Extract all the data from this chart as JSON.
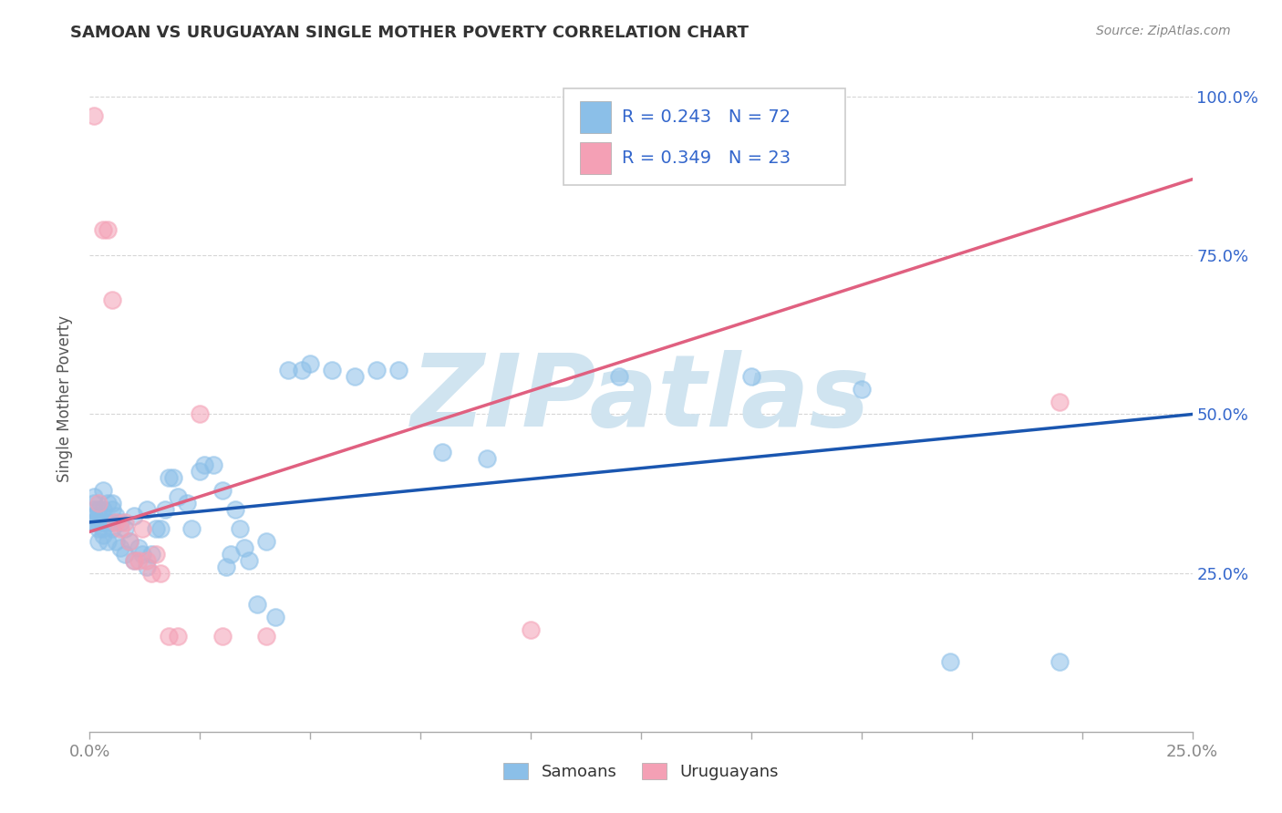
{
  "title": "SAMOAN VS URUGUAYAN SINGLE MOTHER POVERTY CORRELATION CHART",
  "source": "Source: ZipAtlas.com",
  "ylabel": "Single Mother Poverty",
  "xlim": [
    0.0,
    0.25
  ],
  "ylim": [
    0.0,
    1.05
  ],
  "samoans_R": 0.243,
  "samoans_N": 72,
  "uruguayans_R": 0.349,
  "uruguayans_N": 23,
  "samoan_color": "#8bbfe8",
  "uruguayan_color": "#f4a0b5",
  "samoan_line_color": "#1a56b0",
  "uruguayan_line_color": "#e06080",
  "background_color": "#ffffff",
  "grid_color": "#cccccc",
  "watermark_text": "ZIPatlas",
  "watermark_color": "#d0e4f0",
  "legend_text_color": "#3366cc",
  "title_color": "#333333",
  "ylabel_color": "#555555",
  "xtick_color": "#888888",
  "ytick_color": "#3366cc",
  "samoans_x": [
    0.001,
    0.001,
    0.001,
    0.001,
    0.001,
    0.001,
    0.002,
    0.002,
    0.002,
    0.002,
    0.002,
    0.003,
    0.003,
    0.003,
    0.003,
    0.003,
    0.004,
    0.004,
    0.004,
    0.005,
    0.005,
    0.005,
    0.005,
    0.006,
    0.006,
    0.007,
    0.007,
    0.008,
    0.008,
    0.009,
    0.01,
    0.01,
    0.011,
    0.012,
    0.013,
    0.013,
    0.014,
    0.015,
    0.016,
    0.017,
    0.018,
    0.019,
    0.02,
    0.022,
    0.023,
    0.025,
    0.026,
    0.028,
    0.03,
    0.031,
    0.032,
    0.033,
    0.034,
    0.035,
    0.036,
    0.038,
    0.04,
    0.042,
    0.045,
    0.048,
    0.05,
    0.055,
    0.06,
    0.065,
    0.07,
    0.08,
    0.09,
    0.12,
    0.15,
    0.175,
    0.195,
    0.22
  ],
  "samoans_y": [
    0.33,
    0.34,
    0.35,
    0.33,
    0.36,
    0.37,
    0.32,
    0.34,
    0.35,
    0.3,
    0.33,
    0.31,
    0.33,
    0.35,
    0.38,
    0.32,
    0.3,
    0.33,
    0.36,
    0.32,
    0.35,
    0.33,
    0.36,
    0.3,
    0.34,
    0.29,
    0.33,
    0.28,
    0.32,
    0.3,
    0.27,
    0.34,
    0.29,
    0.28,
    0.26,
    0.35,
    0.28,
    0.32,
    0.32,
    0.35,
    0.4,
    0.4,
    0.37,
    0.36,
    0.32,
    0.41,
    0.42,
    0.42,
    0.38,
    0.26,
    0.28,
    0.35,
    0.32,
    0.29,
    0.27,
    0.2,
    0.3,
    0.18,
    0.57,
    0.57,
    0.58,
    0.57,
    0.56,
    0.57,
    0.57,
    0.44,
    0.43,
    0.56,
    0.56,
    0.54,
    0.11,
    0.11
  ],
  "uruguayans_x": [
    0.001,
    0.002,
    0.003,
    0.004,
    0.005,
    0.006,
    0.007,
    0.008,
    0.009,
    0.01,
    0.011,
    0.012,
    0.013,
    0.014,
    0.015,
    0.016,
    0.018,
    0.02,
    0.025,
    0.03,
    0.04,
    0.1,
    0.22
  ],
  "uruguayans_y": [
    0.97,
    0.36,
    0.79,
    0.79,
    0.68,
    0.33,
    0.32,
    0.33,
    0.3,
    0.27,
    0.27,
    0.32,
    0.27,
    0.25,
    0.28,
    0.25,
    0.15,
    0.15,
    0.5,
    0.15,
    0.15,
    0.16,
    0.52
  ],
  "blue_line_y0": 0.33,
  "blue_line_y1": 0.5,
  "pink_line_y0": 0.315,
  "pink_line_y1": 0.87
}
